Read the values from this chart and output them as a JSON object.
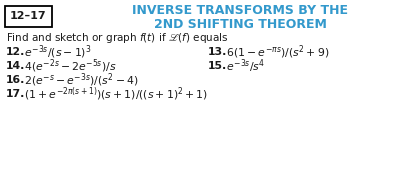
{
  "box_label": "12–17",
  "title_line1": "INVERSE TRANSFORMS BY THE",
  "title_line2": "2ND SHIFTING THEOREM",
  "subtitle": "Find and sketch or graph $f(t)$ if $\\mathscr{L}(f)$ equals",
  "problems": [
    {
      "num": "12.",
      "text": " $e^{-3s}/(s-1)^3$"
    },
    {
      "num": "13.",
      "text": " $6(1 - e^{-\\pi s})/(s^2 + 9)$"
    },
    {
      "num": "14.",
      "text": " $4(e^{-2s} - 2e^{-5s})/s$"
    },
    {
      "num": "15.",
      "text": " $e^{-3s}/s^4$"
    },
    {
      "num": "16.",
      "text": " $2(e^{-s} - e^{-3s})/(s^2 - 4)$"
    },
    {
      "num": "17.",
      "text": " $(1 + e^{-2\\pi(s+1)})(s+1)/((s+1)^2 + 1)$"
    }
  ],
  "cyan_color": "#3399CC",
  "box_color": "#000000",
  "text_color": "#1a1a1a",
  "bg_color": "#FFFFFF",
  "fig_width": 4.11,
  "fig_height": 1.93,
  "dpi": 100
}
